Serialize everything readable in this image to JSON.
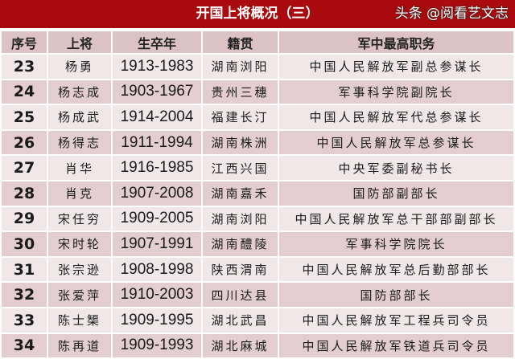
{
  "title": "开国上将概况（三）",
  "columns": [
    "序号",
    "上将",
    "生卒年",
    "籍贯",
    "军中最高职务"
  ],
  "rows": [
    [
      "23",
      "杨勇",
      "1913-1983",
      "湖南浏阳",
      "中国人民解放军副总参谋长"
    ],
    [
      "24",
      "杨志成",
      "1903-1967",
      "贵州三穗",
      "军事科学院副院长"
    ],
    [
      "25",
      "杨成武",
      "1914-2004",
      "福建长汀",
      "中国人民解放军代总参谋长"
    ],
    [
      "26",
      "杨得志",
      "1911-1994",
      "湖南株洲",
      "中国人民解放军总参谋长"
    ],
    [
      "27",
      "肖华",
      "1916-1985",
      "江西兴国",
      "中央军委副秘书长"
    ],
    [
      "28",
      "肖克",
      "1907-2008",
      "湖南嘉禾",
      "国防部副部长"
    ],
    [
      "29",
      "宋任穷",
      "1909-2005",
      "湖南浏阳",
      "中国人民解放军总干部部副部长"
    ],
    [
      "30",
      "宋时轮",
      "1907-1991",
      "湖南醴陵",
      "军事科学院院长"
    ],
    [
      "31",
      "张宗逊",
      "1908-1998",
      "陕西渭南",
      "中国人民解放军总后勤部部长"
    ],
    [
      "32",
      "张爱萍",
      "1910-2003",
      "四川达县",
      "国防部部长"
    ],
    [
      "33",
      "陈士榘",
      "1909-1995",
      "湖北武昌",
      "中国人民解放军工程兵司令员"
    ],
    [
      "34",
      "陈再道",
      "1909-1993",
      "湖北麻城",
      "中国人民解放军铁道兵司令员"
    ]
  ],
  "watermark": "头条 @阅看艺文志",
  "colors": {
    "title_bg": "#a80a0d",
    "header_bg": "#dcc2c5",
    "row_light": "#f1e7e8",
    "row_dark": "#e3cdd0"
  }
}
